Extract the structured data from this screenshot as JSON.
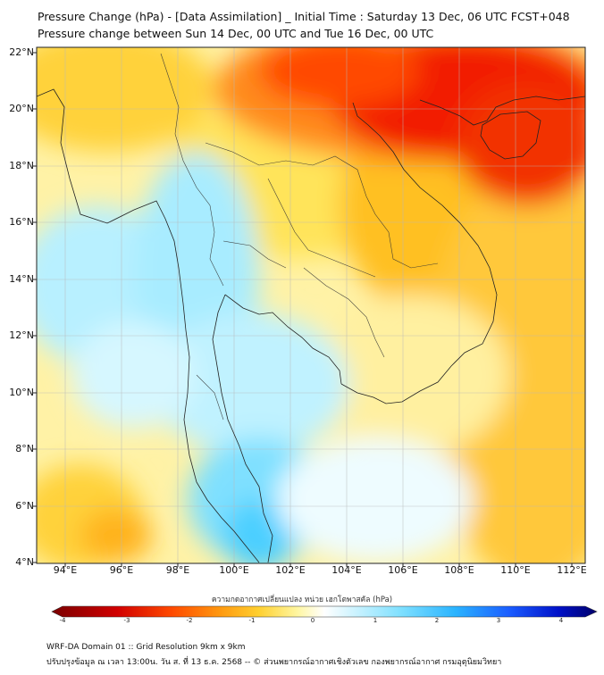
{
  "title_line1": "Pressure Change (hPa) - [Data Assimilation] _ Initial Time : Saturday 13 Dec, 06 UTC FCST+048",
  "title_line2": "Pressure change between Sun 14 Dec, 00 UTC and Tue 16 Dec, 00 UTC",
  "lat_labels": [
    "22°N",
    "20°N",
    "18°N",
    "16°N",
    "14°N",
    "12°N",
    "10°N",
    "8°N",
    "6°N",
    "4°N"
  ],
  "lon_labels": [
    "94°E",
    "96°E",
    "98°E",
    "100°E",
    "102°E",
    "104°E",
    "106°E",
    "108°E",
    "110°E",
    "112°E"
  ],
  "colorbar": {
    "title": "ความกดอากาศเปลี่ยนแปลง หน่วย เฮกโตพาสคัล (hPa)",
    "ticks": [
      "-4",
      "-3",
      "-2",
      "-1",
      "0",
      "1",
      "2",
      "3",
      "4"
    ],
    "range": [
      -4,
      4
    ],
    "colors": [
      "#7a0000",
      "#d10000",
      "#ff4a00",
      "#ff9a10",
      "#ffd030",
      "#fff6a0",
      "#ffffff",
      "#c8f2ff",
      "#7fe0ff",
      "#2ab4ff",
      "#1a5cff",
      "#0010c8",
      "#00006a"
    ]
  },
  "footer_line1": "WRF-DA Domain 01 :: Grid Resolution 9km x 9km",
  "footer_line2": "ปรับปรุงข้อมูล ณ เวลา 13:00น. วัน ส. ที่ 13 ธ.ค. 2568 -- © ส่วนพยากรณ์อากาศเชิงตัวเลข กองพยากรณ์อากาศ กรมอุตุนิยมวิทยา",
  "map": {
    "region_lon": [
      93,
      112.5
    ],
    "region_lat": [
      4,
      22.2
    ],
    "gridlines": true
  }
}
